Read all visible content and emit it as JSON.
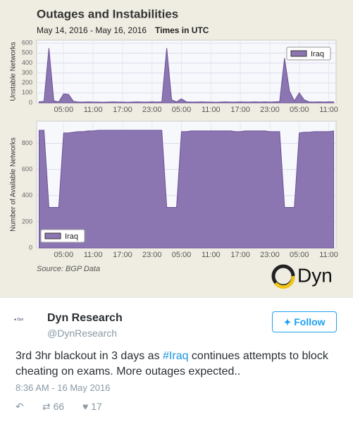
{
  "header": {
    "title": "Outages and Instabilities",
    "dates": "May 14, 2016 - May 16, 2016",
    "timezone": "Times in UTC",
    "source": "Source: BGP Data",
    "logo": "Dyn"
  },
  "chart_data": [
    {
      "type": "area",
      "ylabel": "Unstable Networks",
      "ylim": [
        0,
        630
      ],
      "yticks": [
        0,
        100,
        200,
        300,
        400,
        500,
        600
      ],
      "grid": true,
      "legend": "top-right",
      "categories": [
        null,
        null,
        null,
        null,
        null,
        "05:00",
        null,
        null,
        null,
        null,
        null,
        "11:00",
        null,
        null,
        null,
        null,
        null,
        "17:00",
        null,
        null,
        null,
        null,
        null,
        "23:00",
        null,
        null,
        null,
        null,
        null,
        "05:00",
        null,
        null,
        null,
        null,
        null,
        "11:00",
        null,
        null,
        null,
        null,
        null,
        "17:00",
        null,
        null,
        null,
        null,
        null,
        "23:00",
        null,
        null,
        null,
        null,
        null,
        "05:00",
        null,
        null,
        null,
        null,
        null,
        "11:00",
        null
      ],
      "series": [
        {
          "name": "Iraq",
          "color": "#8c76b2",
          "values": [
            10,
            15,
            550,
            20,
            10,
            90,
            85,
            15,
            8,
            8,
            10,
            8,
            8,
            6,
            8,
            10,
            8,
            8,
            6,
            8,
            10,
            8,
            8,
            10,
            8,
            10,
            550,
            30,
            10,
            40,
            10,
            8,
            8,
            10,
            8,
            8,
            6,
            8,
            10,
            8,
            8,
            10,
            8,
            8,
            10,
            8,
            10,
            8,
            10,
            12,
            450,
            120,
            20,
            100,
            30,
            10,
            8,
            10,
            8,
            10,
            10
          ]
        }
      ]
    },
    {
      "type": "area",
      "ylabel": "Number of Available Networks",
      "ylim": [
        0,
        970
      ],
      "yticks": [
        0,
        200,
        400,
        600,
        800
      ],
      "grid": true,
      "legend": "bottom-left",
      "categories": [
        null,
        null,
        null,
        null,
        null,
        "05:00",
        null,
        null,
        null,
        null,
        null,
        "11:00",
        null,
        null,
        null,
        null,
        null,
        "17:00",
        null,
        null,
        null,
        null,
        null,
        "23:00",
        null,
        null,
        null,
        null,
        null,
        "05:00",
        null,
        null,
        null,
        null,
        null,
        "11:00",
        null,
        null,
        null,
        null,
        null,
        "17:00",
        null,
        null,
        null,
        null,
        null,
        "23:00",
        null,
        null,
        null,
        null,
        null,
        "05:00",
        null,
        null,
        null,
        null,
        null,
        "11:00",
        null
      ],
      "series": [
        {
          "name": "Iraq",
          "color": "#8c76b2",
          "values": [
            900,
            900,
            310,
            310,
            310,
            880,
            880,
            885,
            890,
            890,
            895,
            895,
            900,
            900,
            900,
            900,
            900,
            900,
            900,
            900,
            900,
            900,
            900,
            900,
            900,
            900,
            310,
            310,
            310,
            890,
            890,
            895,
            895,
            895,
            895,
            895,
            895,
            895,
            895,
            895,
            890,
            890,
            895,
            895,
            895,
            895,
            895,
            890,
            890,
            890,
            310,
            310,
            310,
            880,
            885,
            885,
            890,
            890,
            890,
            890,
            895
          ]
        }
      ]
    }
  ],
  "tweet": {
    "name": "Dyn Research",
    "handle": "@DynResearch",
    "follow": "Follow",
    "text_before": "3rd 3hr blackout in 3 days as ",
    "hashtag": "#Iraq",
    "text_after": " continues attempts to block cheating on exams. More outages expected..",
    "time": "8:36 AM - 16 May 2016",
    "retweets": 66,
    "likes": 17
  }
}
